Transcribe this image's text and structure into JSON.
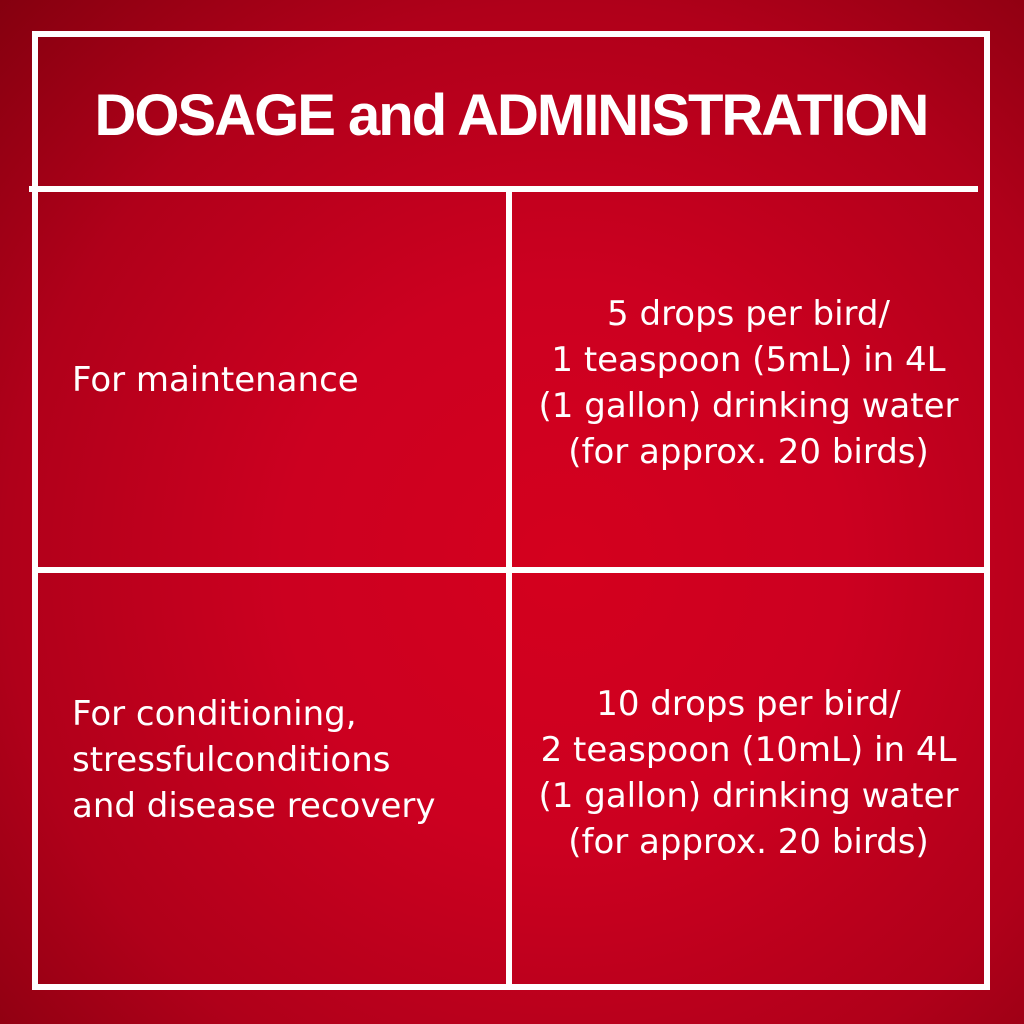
{
  "title": "DOSAGE and ADMINISTRATION",
  "rows": [
    {
      "condition": "For maintenance",
      "dosage": [
        "5 drops per bird/",
        "1 teaspoon (5mL) in 4L",
        "(1 gallon) drinking water",
        "(for approx. 20 birds)"
      ]
    },
    {
      "condition_lines": [
        "For conditioning,",
        "stressfulconditions",
        "and disease recovery"
      ],
      "dosage": [
        "10 drops per bird/",
        "2 teaspoon (10mL) in 4L",
        "(1 gallon) drinking water",
        "(for approx. 20 birds)"
      ]
    }
  ],
  "colors": {
    "background": "#cc0020",
    "lines": "#ffffff",
    "text": "#ffffff"
  }
}
